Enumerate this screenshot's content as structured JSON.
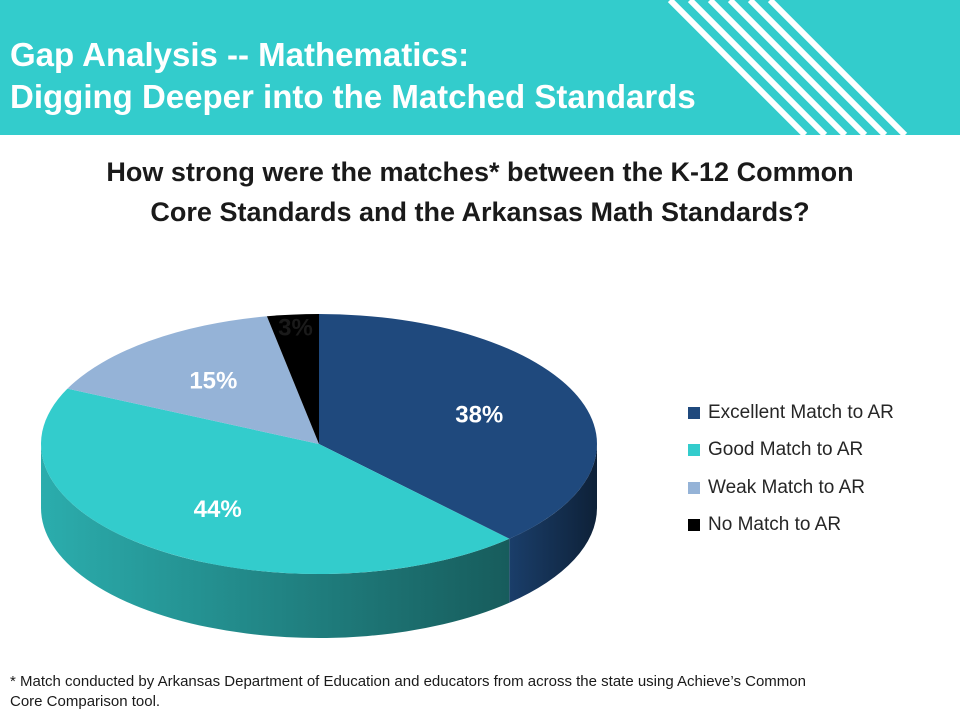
{
  "header": {
    "title_lines": [
      "Gap Analysis -- Mathematics:",
      "Digging Deeper into the Matched Standards"
    ]
  },
  "question_lines": [
    "How strong were the matches* between the K-12 Common",
    "Core Standards and the Arkansas Math Standards?"
  ],
  "colors": {
    "header_bg": "#33CCCC",
    "header_text": "#FFFFFF"
  },
  "chart_data": {
    "type": "pie",
    "title": "",
    "style": "3d",
    "legend_position": "right",
    "series": [
      {
        "name": "Excellent Match to AR",
        "value": 38,
        "label": "38%",
        "color": "#1F497D"
      },
      {
        "name": "Good Match to AR",
        "value": 44,
        "label": "44%",
        "color": "#33CCCC"
      },
      {
        "name": "Weak Match to AR",
        "value": 15,
        "label": "15%",
        "color": "#95B3D7"
      },
      {
        "name": "No Match to AR",
        "value": 3,
        "label": "3%",
        "color": "#000000"
      }
    ]
  },
  "footnote_lines": [
    "* Match conducted by Arkansas Department of Education and educators from across the state using Achieve’s Common",
    "   Core Comparison tool."
  ]
}
